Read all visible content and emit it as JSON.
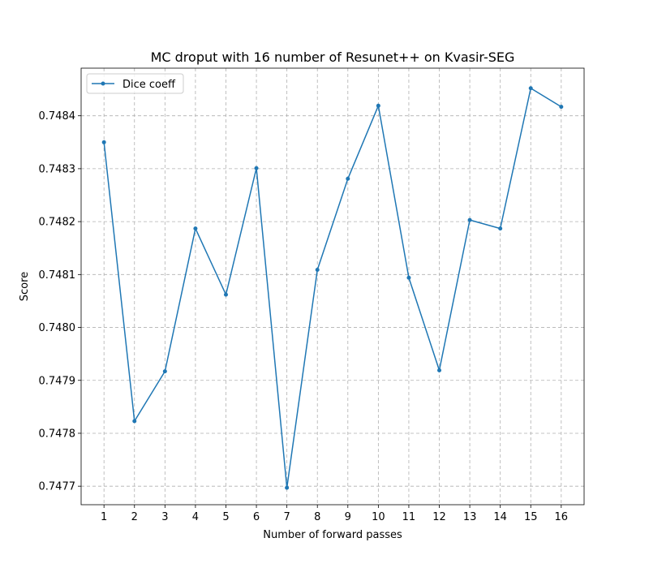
{
  "chart_data": {
    "type": "line",
    "title": "MC droput with 16 number of Resunet++ on Kvasir-SEG",
    "xlabel": "Number of forward passes",
    "ylabel": "Score",
    "x": [
      1,
      2,
      3,
      4,
      5,
      6,
      7,
      8,
      9,
      10,
      11,
      12,
      13,
      14,
      15,
      16
    ],
    "xlim": [
      0.25,
      16.75
    ],
    "ylim": [
      0.747665,
      0.74849
    ],
    "yticks": [
      0.7477,
      0.7478,
      0.7479,
      0.748,
      0.7481,
      0.7482,
      0.7483,
      0.7484
    ],
    "ytick_labels": [
      "0.7477",
      "0.7478",
      "0.7479",
      "0.7480",
      "0.7481",
      "0.7482",
      "0.7483",
      "0.7484"
    ],
    "grid": true,
    "legend_position": "top-left",
    "series": [
      {
        "name": "Dice coeff",
        "color": "#1f77b4",
        "marker": "circle",
        "values": [
          0.74835,
          0.747823,
          0.747917,
          0.748187,
          0.748062,
          0.748301,
          0.747697,
          0.748109,
          0.748281,
          0.748419,
          0.748094,
          0.747919,
          0.748203,
          0.748187,
          0.748452,
          0.748417
        ]
      }
    ]
  }
}
